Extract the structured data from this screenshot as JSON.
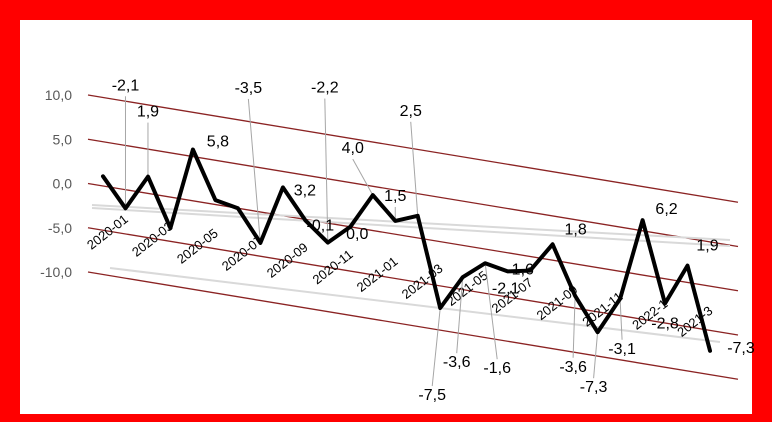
{
  "chart_data": {
    "type": "line",
    "title": "",
    "xlabel": "",
    "ylabel": "",
    "ylim": [
      -10,
      10
    ],
    "y_ticks": [
      "10,0",
      "5,0",
      "0,0",
      "-5,0",
      "-10,0"
    ],
    "grid": true,
    "line_color": "#000000",
    "grid_color": "#8b2323",
    "frame_color": "#ff0000",
    "x_ticks": [
      {
        "index": 0,
        "label": "2020-01"
      },
      {
        "index": 2,
        "label": "2020-03"
      },
      {
        "index": 4,
        "label": "2020-05"
      },
      {
        "index": 6,
        "label": "2020-07"
      },
      {
        "index": 8,
        "label": "2020-09"
      },
      {
        "index": 10,
        "label": "2020-11"
      },
      {
        "index": 12,
        "label": "2021-01"
      },
      {
        "index": 14,
        "label": "2021-03"
      },
      {
        "index": 16,
        "label": "2021-05"
      },
      {
        "index": 18,
        "label": "2021-07"
      },
      {
        "index": 20,
        "label": "2021-09"
      },
      {
        "index": 22,
        "label": "2021-11"
      },
      {
        "index": 24,
        "label": "2022-1"
      },
      {
        "index": 26,
        "label": "2021-3"
      }
    ],
    "series": [
      {
        "values": [
          1.1,
          -2.1,
          1.9,
          -3.5,
          5.8,
          0.5,
          0.0,
          -3.5,
          3.2,
          -0.1,
          -2.2,
          0.0,
          4.0,
          1.5,
          2.5,
          -7.5,
          -3.6,
          -1.6,
          -2.1,
          -1.6,
          1.8,
          -3.6,
          -7.3,
          -3.1,
          6.2,
          -2.8,
          1.9,
          -7.3
        ],
        "labels": [
          "",
          "-2,1",
          "1,9",
          "",
          "5,8",
          "",
          "",
          "-3,5",
          "3,2",
          "-0,1",
          "-2,2",
          "0,0",
          "4,0",
          "1,5",
          "2,5",
          "-7,5",
          "-3,6",
          "-1,6",
          "-2,1",
          "-1,6",
          "1,8",
          "-3,6",
          "-7,3",
          "-3,1",
          "6,2",
          "-2,8",
          "1,9",
          "-7,3"
        ]
      }
    ]
  }
}
